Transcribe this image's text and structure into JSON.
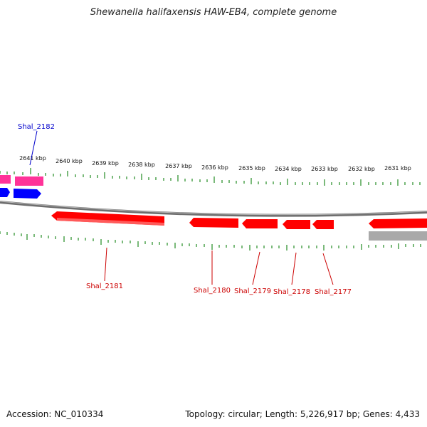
{
  "title": "Shewanella halifaxensis HAW-EB4, complete genome",
  "footer": {
    "accession": "Accession: NC_010334",
    "topology": "Topology: circular; Length: 5,226,917 bp; Genes: 4,433"
  },
  "ruler": {
    "ticks": [
      {
        "label": "2641 kbp"
      },
      {
        "label": "2640 kbp"
      },
      {
        "label": "2639 kbp"
      },
      {
        "label": "2638 kbp"
      },
      {
        "label": "2637 kbp"
      },
      {
        "label": "2636 kbp"
      },
      {
        "label": "2635 kbp"
      },
      {
        "label": "2634 kbp"
      },
      {
        "label": "2633 kbp"
      },
      {
        "label": "2632 kbp"
      },
      {
        "label": "2631 kbp"
      }
    ]
  },
  "genes": [
    {
      "label": "Shal_2182",
      "strand": "plus",
      "color": "#0000cc"
    },
    {
      "label": "Shal_2181",
      "strand": "minus",
      "color": "#cc0000"
    },
    {
      "label": "Shal_2180",
      "strand": "minus",
      "color": "#cc0000"
    },
    {
      "label": "Shal_2179",
      "strand": "minus",
      "color": "#cc0000"
    },
    {
      "label": "Shal_2178",
      "strand": "minus",
      "color": "#cc0000"
    },
    {
      "label": "Shal_2177",
      "strand": "minus",
      "color": "#cc0000"
    }
  ],
  "colors": {
    "tick": "#228b22",
    "backbone": "#808080",
    "minus_feature": "#ff0000",
    "plus_feature": "#0000ff",
    "pink_feature": "#ff3399",
    "gray_feature": "#a9a9a9"
  }
}
